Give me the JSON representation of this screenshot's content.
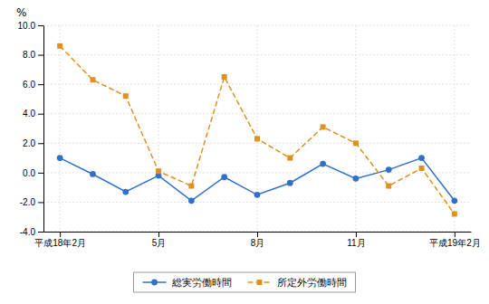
{
  "chart_data": {
    "type": "line",
    "ylabel": "%",
    "categories": [
      "平成18年2月",
      null,
      null,
      "5月",
      null,
      null,
      "8月",
      null,
      null,
      "11月",
      null,
      null,
      "平成19年2月"
    ],
    "series": [
      {
        "name": "総実労働時間",
        "color": "#3070c8",
        "marker": "circle",
        "line_style": "solid",
        "values": [
          1.0,
          -0.1,
          -1.3,
          -0.2,
          -1.9,
          -0.3,
          -1.5,
          -0.7,
          0.6,
          -0.4,
          0.2,
          1.0,
          -1.9
        ]
      },
      {
        "name": "所定外労働時間",
        "color": "#e09020",
        "marker": "square",
        "line_style": "dashed",
        "values": [
          8.6,
          6.3,
          5.2,
          0.1,
          -0.9,
          6.5,
          2.3,
          1.0,
          3.1,
          2.0,
          -0.9,
          0.3,
          -2.8
        ]
      }
    ],
    "ylim": [
      -4.0,
      10.0
    ],
    "yticks": [
      {
        "value": -4.0,
        "label": "-4.0"
      },
      {
        "value": -2.0,
        "label": "-2.0"
      },
      {
        "value": 0.0,
        "label": "0.0"
      },
      {
        "value": 2.0,
        "label": "2.0"
      },
      {
        "value": 4.0,
        "label": "4.0"
      },
      {
        "value": 6.0,
        "label": "6.0"
      },
      {
        "value": 8.0,
        "label": "8.0"
      },
      {
        "value": 10.0,
        "label": "10.0"
      }
    ],
    "grid": true,
    "legend": "bottom"
  }
}
